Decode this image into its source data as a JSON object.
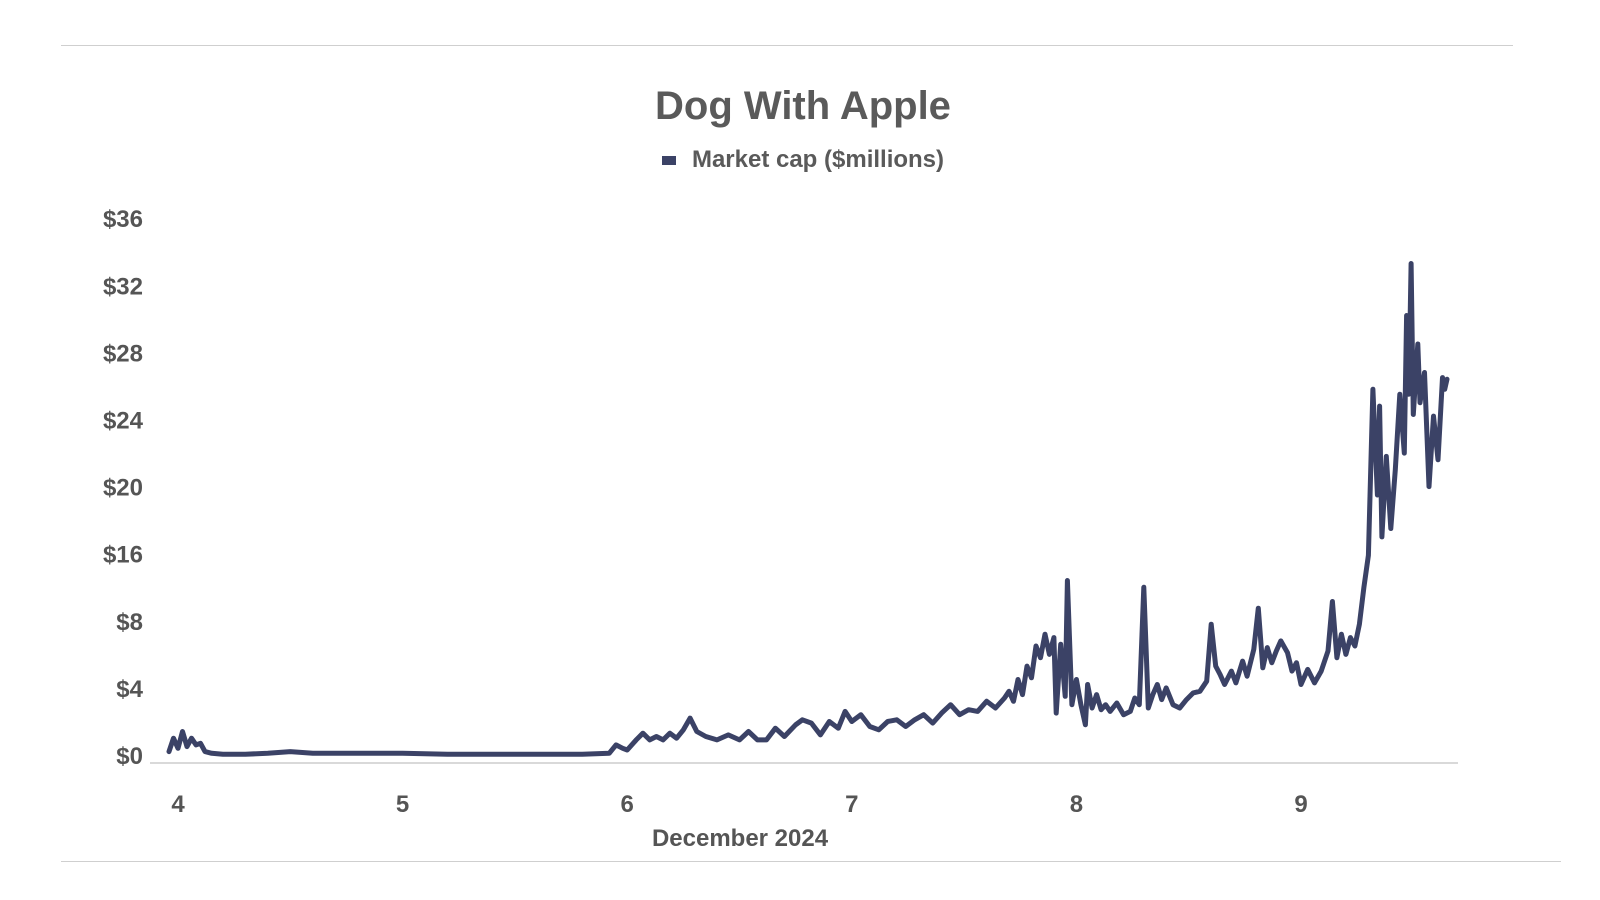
{
  "chart_data": {
    "type": "line",
    "title": "Dog With Apple",
    "legend": {
      "position": "top-center",
      "entries": [
        "Market cap ($millions)"
      ]
    },
    "xlabel": "December 2024",
    "ylabel": "",
    "grid": false,
    "x_ticks": [
      {
        "value": 4,
        "label": "4"
      },
      {
        "value": 5,
        "label": "5"
      },
      {
        "value": 6,
        "label": "6"
      },
      {
        "value": 7,
        "label": "7"
      },
      {
        "value": 8,
        "label": "8"
      },
      {
        "value": 9,
        "label": "9"
      }
    ],
    "y_ticks": [
      {
        "value": 0,
        "label": "$0"
      },
      {
        "value": 4,
        "label": "$4"
      },
      {
        "value": 8,
        "label": "$8"
      },
      {
        "value": 16,
        "label": "$16"
      },
      {
        "value": 20,
        "label": "$20"
      },
      {
        "value": 24,
        "label": "$24"
      },
      {
        "value": 28,
        "label": "$28"
      },
      {
        "value": 32,
        "label": "$32"
      },
      {
        "value": 36,
        "label": "$36"
      }
    ],
    "xlim": [
      3.96,
      9.7
    ],
    "series": [
      {
        "name": "Market cap ($millions)",
        "color": "#3b4266",
        "points": [
          [
            3.96,
            0.2
          ],
          [
            3.98,
            1.0
          ],
          [
            4.0,
            0.4
          ],
          [
            4.02,
            1.4
          ],
          [
            4.04,
            0.5
          ],
          [
            4.06,
            1.0
          ],
          [
            4.08,
            0.6
          ],
          [
            4.1,
            0.7
          ],
          [
            4.12,
            0.2
          ],
          [
            4.15,
            0.1
          ],
          [
            4.2,
            0.05
          ],
          [
            4.3,
            0.05
          ],
          [
            4.4,
            0.1
          ],
          [
            4.5,
            0.2
          ],
          [
            4.6,
            0.1
          ],
          [
            4.7,
            0.1
          ],
          [
            4.8,
            0.1
          ],
          [
            4.9,
            0.1
          ],
          [
            5.0,
            0.1
          ],
          [
            5.2,
            0.05
          ],
          [
            5.4,
            0.05
          ],
          [
            5.6,
            0.05
          ],
          [
            5.8,
            0.05
          ],
          [
            5.92,
            0.1
          ],
          [
            5.95,
            0.6
          ],
          [
            5.98,
            0.4
          ],
          [
            6.0,
            0.3
          ],
          [
            6.04,
            0.9
          ],
          [
            6.07,
            1.3
          ],
          [
            6.1,
            0.9
          ],
          [
            6.13,
            1.1
          ],
          [
            6.16,
            0.9
          ],
          [
            6.19,
            1.3
          ],
          [
            6.22,
            1.0
          ],
          [
            6.25,
            1.5
          ],
          [
            6.28,
            2.2
          ],
          [
            6.31,
            1.4
          ],
          [
            6.35,
            1.1
          ],
          [
            6.4,
            0.9
          ],
          [
            6.45,
            1.2
          ],
          [
            6.5,
            0.9
          ],
          [
            6.54,
            1.4
          ],
          [
            6.58,
            0.9
          ],
          [
            6.62,
            0.9
          ],
          [
            6.66,
            1.6
          ],
          [
            6.7,
            1.1
          ],
          [
            6.75,
            1.8
          ],
          [
            6.78,
            2.1
          ],
          [
            6.82,
            1.9
          ],
          [
            6.86,
            1.2
          ],
          [
            6.9,
            2.0
          ],
          [
            6.94,
            1.6
          ],
          [
            6.97,
            2.6
          ],
          [
            7.0,
            2.0
          ],
          [
            7.04,
            2.4
          ],
          [
            7.08,
            1.7
          ],
          [
            7.12,
            1.5
          ],
          [
            7.16,
            2.0
          ],
          [
            7.2,
            2.1
          ],
          [
            7.24,
            1.7
          ],
          [
            7.28,
            2.1
          ],
          [
            7.32,
            2.4
          ],
          [
            7.36,
            1.9
          ],
          [
            7.4,
            2.5
          ],
          [
            7.44,
            3.0
          ],
          [
            7.48,
            2.4
          ],
          [
            7.52,
            2.7
          ],
          [
            7.56,
            2.6
          ],
          [
            7.6,
            3.2
          ],
          [
            7.64,
            2.8
          ],
          [
            7.68,
            3.4
          ],
          [
            7.7,
            3.8
          ],
          [
            7.72,
            3.2
          ],
          [
            7.74,
            4.5
          ],
          [
            7.76,
            3.6
          ],
          [
            7.78,
            5.3
          ],
          [
            7.8,
            4.6
          ],
          [
            7.82,
            6.5
          ],
          [
            7.84,
            5.8
          ],
          [
            7.86,
            7.2
          ],
          [
            7.88,
            6.0
          ],
          [
            7.9,
            7.0
          ],
          [
            7.91,
            2.5
          ],
          [
            7.93,
            6.6
          ],
          [
            7.95,
            3.5
          ],
          [
            7.96,
            12.8
          ],
          [
            7.98,
            3.0
          ],
          [
            8.0,
            4.5
          ],
          [
            8.02,
            3.0
          ],
          [
            8.04,
            1.8
          ],
          [
            8.05,
            4.2
          ],
          [
            8.07,
            2.8
          ],
          [
            8.09,
            3.6
          ],
          [
            8.11,
            2.7
          ],
          [
            8.13,
            3.0
          ],
          [
            8.15,
            2.6
          ],
          [
            8.18,
            3.1
          ],
          [
            8.21,
            2.4
          ],
          [
            8.24,
            2.6
          ],
          [
            8.26,
            3.4
          ],
          [
            8.28,
            3.0
          ],
          [
            8.3,
            12.0
          ],
          [
            8.32,
            2.8
          ],
          [
            8.34,
            3.6
          ],
          [
            8.36,
            4.2
          ],
          [
            8.38,
            3.3
          ],
          [
            8.4,
            4.0
          ],
          [
            8.43,
            3.0
          ],
          [
            8.46,
            2.8
          ],
          [
            8.49,
            3.3
          ],
          [
            8.52,
            3.7
          ],
          [
            8.55,
            3.8
          ],
          [
            8.58,
            4.4
          ],
          [
            8.6,
            7.8
          ],
          [
            8.62,
            5.3
          ],
          [
            8.64,
            4.8
          ],
          [
            8.66,
            4.2
          ],
          [
            8.69,
            5.0
          ],
          [
            8.71,
            4.3
          ],
          [
            8.74,
            5.6
          ],
          [
            8.76,
            4.7
          ],
          [
            8.79,
            6.3
          ],
          [
            8.81,
            9.5
          ],
          [
            8.83,
            5.2
          ],
          [
            8.85,
            6.4
          ],
          [
            8.87,
            5.5
          ],
          [
            8.89,
            6.2
          ],
          [
            8.91,
            6.8
          ],
          [
            8.94,
            6.1
          ],
          [
            8.96,
            5.0
          ],
          [
            8.98,
            5.5
          ],
          [
            9.0,
            4.2
          ],
          [
            9.03,
            5.1
          ],
          [
            9.06,
            4.3
          ],
          [
            9.09,
            5.0
          ],
          [
            9.12,
            6.2
          ],
          [
            9.14,
            10.3
          ],
          [
            9.16,
            5.8
          ],
          [
            9.18,
            7.2
          ],
          [
            9.2,
            6.0
          ],
          [
            9.22,
            7.0
          ],
          [
            9.24,
            6.5
          ],
          [
            9.26,
            7.8
          ],
          [
            9.28,
            12.0
          ],
          [
            9.3,
            15.8
          ],
          [
            9.32,
            25.8
          ],
          [
            9.34,
            19.5
          ],
          [
            9.35,
            24.8
          ],
          [
            9.36,
            17.0
          ],
          [
            9.38,
            21.8
          ],
          [
            9.4,
            17.5
          ],
          [
            9.42,
            21.0
          ],
          [
            9.44,
            25.5
          ],
          [
            9.46,
            22.0
          ],
          [
            9.47,
            30.2
          ],
          [
            9.48,
            25.5
          ],
          [
            9.49,
            33.3
          ],
          [
            9.5,
            24.3
          ],
          [
            9.52,
            28.5
          ],
          [
            9.53,
            25.0
          ],
          [
            9.55,
            26.8
          ],
          [
            9.57,
            20.0
          ],
          [
            9.59,
            24.2
          ],
          [
            9.61,
            21.6
          ],
          [
            9.63,
            26.5
          ],
          [
            9.64,
            25.8
          ],
          [
            9.65,
            26.4
          ]
        ]
      }
    ]
  }
}
